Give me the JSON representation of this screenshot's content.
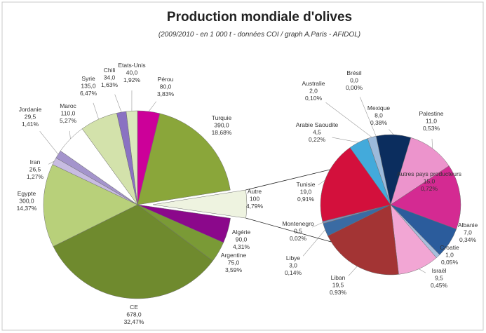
{
  "chart_data": [
    {
      "type": "pie",
      "title": "Production mondiale d'olives",
      "subtitle": "(2009/2010 - en 1 000 t - données COI / graph A.Paris - AFIDOL)",
      "categories": [
        "Pérou",
        "Turquie",
        "Autre",
        "Algérie",
        "Argentine",
        "CE",
        "Egypte",
        "Iran",
        "Jordanie",
        "Maroc",
        "Syrie",
        "Chili",
        "Etats-Unis"
      ],
      "values": [
        80,
        390,
        100,
        90,
        75,
        678,
        300,
        26.5,
        29.5,
        110,
        135,
        34,
        40
      ],
      "value_labels": [
        "80,0",
        "390,0",
        "100",
        "90,0",
        "75,0",
        "678,0",
        "300,0",
        "26,5",
        "29,5",
        "110,0",
        "135,0",
        "34,0",
        "40,0"
      ],
      "percents": [
        3.83,
        18.68,
        4.79,
        4.31,
        3.59,
        32.47,
        14.37,
        1.27,
        1.41,
        5.27,
        6.47,
        1.63,
        1.92
      ],
      "percent_labels": [
        "3,83%",
        "18,68%",
        "4,79%",
        "4,31%",
        "3,59%",
        "32,47%",
        "14,37%",
        "1,27%",
        "1,41%",
        "5,27%",
        "6,47%",
        "1,63%",
        "1,92%"
      ],
      "colors": [
        "#cc0099",
        "#8aa63a",
        "#eef3e0",
        "#8b088b",
        "#7a9a36",
        "#6f8a2e",
        "#b8d07a",
        "#c8bce2",
        "#a494cc",
        "#ffffff",
        "#d3e2ab",
        "#8a72c2",
        "#dae8bc"
      ]
    },
    {
      "type": "pie",
      "categories": [
        "Brésil",
        "Mexique",
        "Palestine",
        "Autres pays producteurs",
        "Albanie",
        "Croatie",
        "Israël",
        "Liban",
        "Libye",
        "Montenegro",
        "Tunisie",
        "Arabie Saoudite",
        "Australie"
      ],
      "values": [
        0,
        8,
        11,
        15,
        7,
        1,
        9.5,
        19.5,
        3,
        0.5,
        19,
        4.5,
        2
      ],
      "value_labels": [
        "0,0",
        "8,0",
        "11,0",
        "15,0",
        "7,0",
        "1,0",
        "9,5",
        "19,5",
        "3,0",
        "0,5",
        "19,0",
        "4,5",
        "2,0"
      ],
      "percents": [
        0,
        0.38,
        0.53,
        0.72,
        0.34,
        0.05,
        0.45,
        0.93,
        0.14,
        0.02,
        0.91,
        0.22,
        0.1
      ],
      "percent_labels": [
        "0,00%",
        "0,38%",
        "0,53%",
        "0,72%",
        "0,34%",
        "0,05%",
        "0,45%",
        "0,93%",
        "0,14%",
        "0,02%",
        "0,91%",
        "0,22%",
        "0,10%"
      ],
      "colors": [
        "#c0d0e8",
        "#0b2d5e",
        "#ec94cc",
        "#d42a92",
        "#2b5c9c",
        "#a8bedc",
        "#f2a6d4",
        "#a33434",
        "#3a6ba3",
        "#7a90b8",
        "#d3103c",
        "#43aadb",
        "#9cbadb"
      ]
    }
  ]
}
